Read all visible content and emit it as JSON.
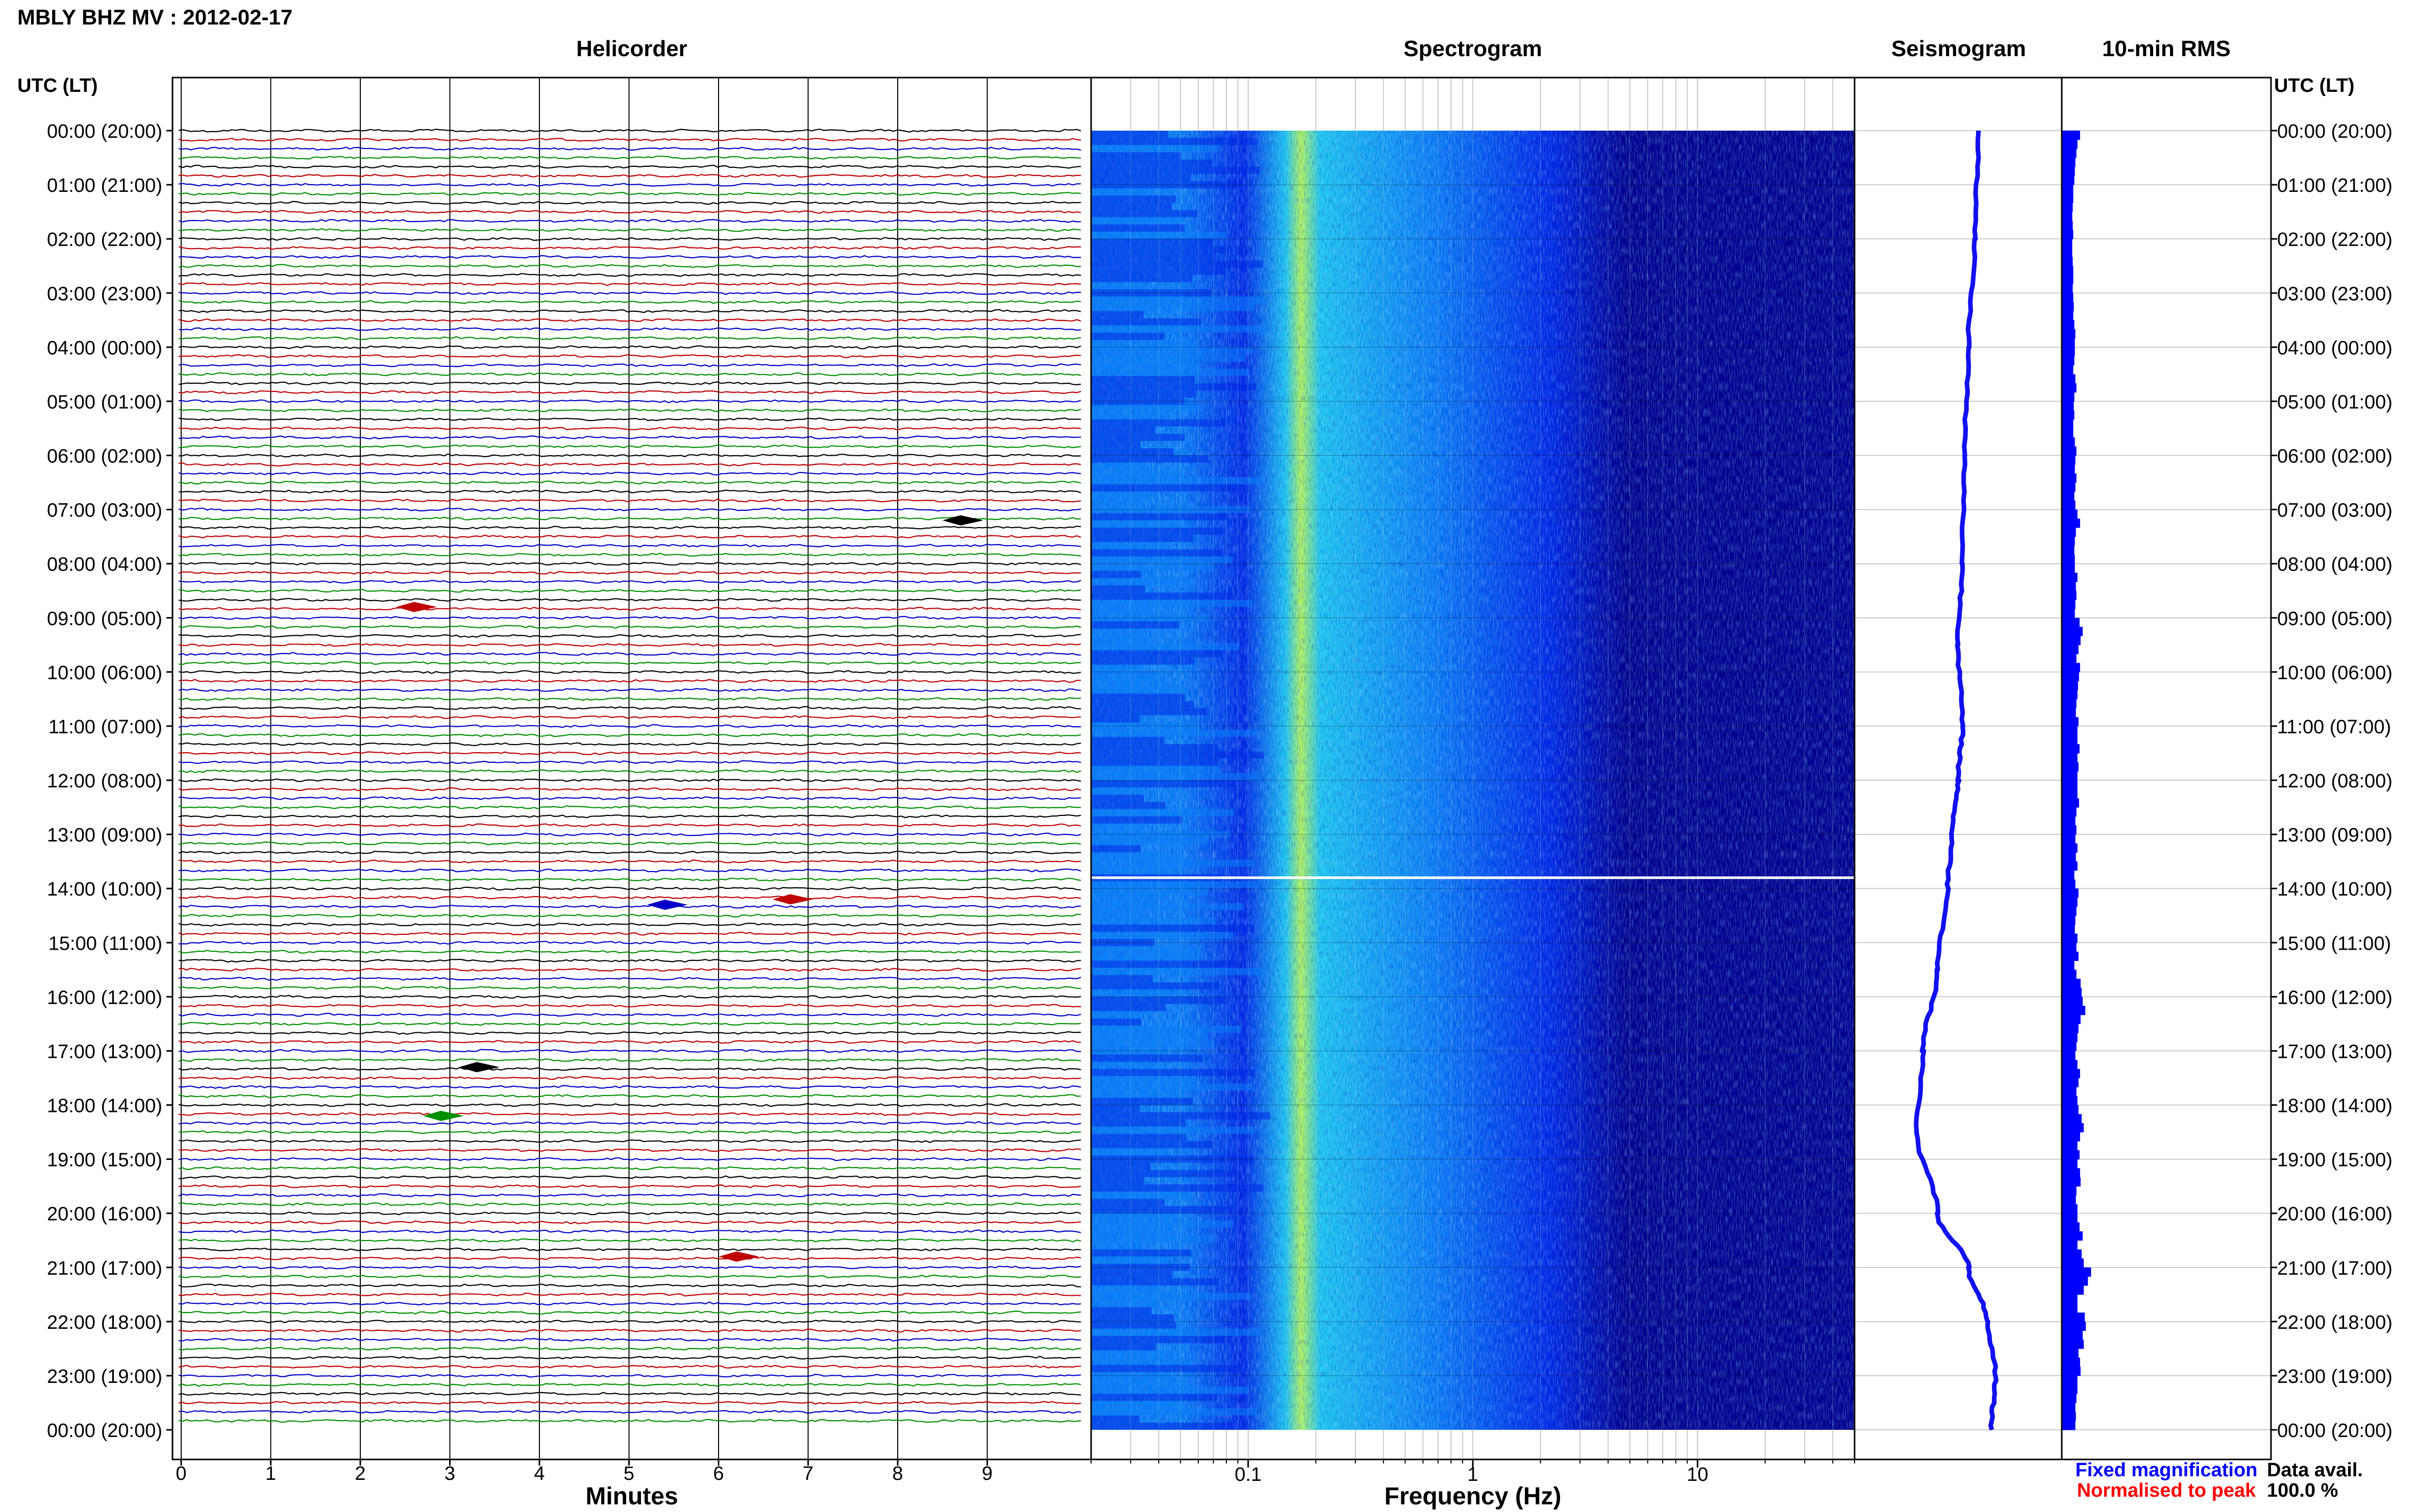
{
  "title": "MBLY BHZ MV : 2012-02-17",
  "panels": {
    "helicorder": "Helicorder",
    "spectrogram": "Spectrogram",
    "seismogram": "Seismogram",
    "rms": "10-min RMS"
  },
  "axis_header": "UTC (LT)",
  "time_labels": [
    "00:00 (20:00)",
    "01:00 (21:00)",
    "02:00 (22:00)",
    "03:00 (23:00)",
    "04:00 (00:00)",
    "05:00 (01:00)",
    "06:00 (02:00)",
    "07:00 (03:00)",
    "08:00 (04:00)",
    "09:00 (05:00)",
    "10:00 (06:00)",
    "11:00 (07:00)",
    "12:00 (08:00)",
    "13:00 (09:00)",
    "14:00 (10:00)",
    "15:00 (11:00)",
    "16:00 (12:00)",
    "17:00 (13:00)",
    "18:00 (14:00)",
    "19:00 (15:00)",
    "20:00 (16:00)",
    "21:00 (17:00)",
    "22:00 (18:00)",
    "23:00 (19:00)",
    "00:00 (20:00)"
  ],
  "helicorder": {
    "xlabel": "Minutes",
    "ticks": [
      "0",
      "1",
      "2",
      "3",
      "4",
      "5",
      "6",
      "7",
      "8",
      "9"
    ],
    "trace_colors": [
      "#000000",
      "#c00000",
      "#0000c8",
      "#009000"
    ],
    "events": [
      {
        "time_hours": 7.2,
        "minute": 8.7,
        "color": "#000000"
      },
      {
        "time_hours": 8.8,
        "minute": 2.6,
        "color": "#c00000"
      },
      {
        "time_hours": 14.2,
        "minute": 6.8,
        "color": "#c00000"
      },
      {
        "time_hours": 14.3,
        "minute": 5.4,
        "color": "#0000c8"
      },
      {
        "time_hours": 17.3,
        "minute": 3.3,
        "color": "#000000"
      },
      {
        "time_hours": 18.2,
        "minute": 2.9,
        "color": "#009000"
      },
      {
        "time_hours": 20.8,
        "minute": 6.2,
        "color": "#c00000"
      }
    ]
  },
  "spectrogram": {
    "xlabel": "Frequency (Hz)",
    "ticks": [
      {
        "value": 0.1,
        "label": "0.1"
      },
      {
        "value": 1,
        "label": "1"
      },
      {
        "value": 10,
        "label": "10"
      }
    ],
    "freq_range_hz": [
      0.02,
      50
    ],
    "x_scale": "log",
    "colormap": [
      "#00008c",
      "#0028e6",
      "#0a7df5",
      "#1ec8f0",
      "#b4f55a"
    ],
    "peak_band_hz": [
      0.18,
      0.3
    ],
    "gap_time_hours": 13.8
  },
  "seismogram": {
    "series_color": "#1010f0",
    "drift": [
      {
        "t": 0,
        "v": 0.6
      },
      {
        "t": 2,
        "v": 0.58
      },
      {
        "t": 4,
        "v": 0.55
      },
      {
        "t": 6,
        "v": 0.53
      },
      {
        "t": 8,
        "v": 0.52
      },
      {
        "t": 9.5,
        "v": 0.5
      },
      {
        "t": 11,
        "v": 0.52
      },
      {
        "t": 12,
        "v": 0.5
      },
      {
        "t": 13,
        "v": 0.47
      },
      {
        "t": 14,
        "v": 0.45
      },
      {
        "t": 15.5,
        "v": 0.4
      },
      {
        "t": 17,
        "v": 0.33
      },
      {
        "t": 18.5,
        "v": 0.3
      },
      {
        "t": 20,
        "v": 0.4
      },
      {
        "t": 21,
        "v": 0.55
      },
      {
        "t": 22,
        "v": 0.64
      },
      {
        "t": 23,
        "v": 0.68
      },
      {
        "t": 24,
        "v": 0.66
      }
    ]
  },
  "rms": {
    "bar_color": "#0000ff",
    "values": [
      0.35,
      0.3,
      0.28,
      0.26,
      0.25,
      0.24,
      0.22,
      0.22,
      0.21,
      0.2,
      0.21,
      0.22,
      0.2,
      0.2,
      0.21,
      0.22,
      0.22,
      0.21,
      0.22,
      0.23,
      0.22,
      0.24,
      0.26,
      0.25,
      0.25,
      0.24,
      0.22,
      0.26,
      0.28,
      0.24,
      0.23,
      0.24,
      0.22,
      0.22,
      0.25,
      0.28,
      0.26,
      0.25,
      0.28,
      0.26,
      0.24,
      0.26,
      0.3,
      0.35,
      0.27,
      0.25,
      0.24,
      0.25,
      0.25,
      0.3,
      0.27,
      0.28,
      0.26,
      0.25,
      0.34,
      0.4,
      0.36,
      0.32,
      0.28,
      0.35,
      0.33,
      0.31,
      0.3,
      0.28,
      0.27,
      0.32,
      0.3,
      0.3,
      0.34,
      0.3,
      0.32,
      0.3,
      0.3,
      0.3,
      0.33,
      0.28,
      0.26,
      0.28,
      0.26,
      0.3,
      0.27,
      0.3,
      0.24,
      0.26,
      0.32,
      0.3,
      0.28,
      0.26,
      0.25,
      0.3,
      0.28,
      0.32,
      0.24,
      0.28,
      0.36,
      0.38,
      0.4,
      0.45,
      0.36,
      0.32,
      0.3,
      0.28,
      0.26,
      0.3,
      0.35,
      0.32,
      0.28,
      0.3,
      0.32,
      0.38,
      0.42,
      0.35,
      0.3,
      0.34,
      0.3,
      0.35,
      0.36,
      0.28,
      0.27,
      0.3,
      0.3,
      0.34,
      0.4,
      0.3,
      0.38,
      0.42,
      0.56,
      0.5,
      0.42,
      0.3,
      0.3,
      0.44,
      0.46,
      0.4,
      0.42,
      0.32,
      0.35,
      0.36,
      0.3,
      0.3,
      0.28,
      0.26,
      0.27,
      0.26
    ]
  },
  "legend": {
    "fixed": "Fixed magnification",
    "fixed_color": "#0000ff",
    "normalised": "Normalised to peak",
    "normalised_color": "#ff0000"
  },
  "data_avail": {
    "label": "Data avail.",
    "value": "100.0 %"
  }
}
